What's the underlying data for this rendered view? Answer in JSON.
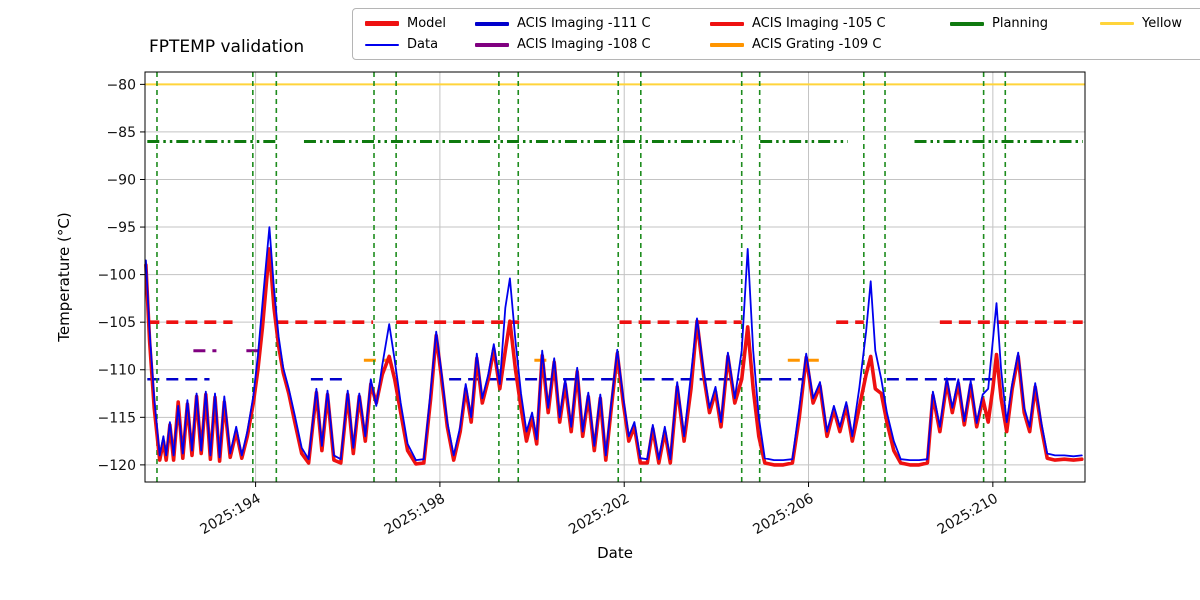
{
  "chart_data": {
    "type": "line",
    "title": "FPTEMP validation",
    "xlabel": "Date",
    "ylabel": "Temperature (°C)",
    "xlim": [
      191.6,
      212.0
    ],
    "ylim": [
      -121.8,
      -78.7
    ],
    "grid": true,
    "xticks": [
      {
        "value": 194,
        "label": "2025:194"
      },
      {
        "value": 198,
        "label": "2025:198"
      },
      {
        "value": 202,
        "label": "2025:202"
      },
      {
        "value": 206,
        "label": "2025:206"
      },
      {
        "value": 210,
        "label": "2025:210"
      }
    ],
    "yticks": [
      {
        "value": -80,
        "label": "−80"
      },
      {
        "value": -85,
        "label": "−85"
      },
      {
        "value": -90,
        "label": "−90"
      },
      {
        "value": -95,
        "label": "−95"
      },
      {
        "value": -100,
        "label": "−100"
      },
      {
        "value": -105,
        "label": "−105"
      },
      {
        "value": -110,
        "label": "−110"
      },
      {
        "value": -115,
        "label": "−115"
      },
      {
        "value": -120,
        "label": "−120"
      }
    ],
    "series": [
      {
        "name": "Model",
        "color": "#ee1111",
        "width": 3.6,
        "x": [
          191.62,
          191.7,
          191.8,
          191.92,
          192.0,
          192.06,
          192.14,
          192.22,
          192.32,
          192.42,
          192.52,
          192.62,
          192.72,
          192.82,
          192.92,
          193.02,
          193.12,
          193.22,
          193.32,
          193.45,
          193.58,
          193.7,
          193.82,
          193.95,
          194.05,
          194.15,
          194.3,
          194.4,
          194.5,
          194.6,
          194.72,
          194.85,
          195.0,
          195.15,
          195.32,
          195.44,
          195.56,
          195.7,
          195.85,
          196.0,
          196.12,
          196.25,
          196.38,
          196.5,
          196.62,
          196.75,
          196.9,
          197.02,
          197.15,
          197.3,
          197.48,
          197.65,
          197.8,
          197.92,
          198.04,
          198.16,
          198.3,
          198.44,
          198.56,
          198.68,
          198.8,
          198.92,
          199.05,
          199.17,
          199.3,
          199.42,
          199.52,
          199.64,
          199.76,
          199.88,
          200.0,
          200.1,
          200.22,
          200.35,
          200.48,
          200.6,
          200.72,
          200.85,
          200.98,
          201.1,
          201.22,
          201.35,
          201.48,
          201.6,
          201.72,
          201.85,
          201.98,
          202.1,
          202.22,
          202.35,
          202.5,
          202.62,
          202.75,
          202.88,
          203.0,
          203.15,
          203.3,
          203.45,
          203.58,
          203.72,
          203.85,
          203.98,
          204.1,
          204.25,
          204.4,
          204.55,
          204.68,
          204.8,
          204.92,
          205.05,
          205.25,
          205.45,
          205.65,
          205.8,
          205.95,
          206.1,
          206.25,
          206.4,
          206.55,
          206.68,
          206.82,
          206.95,
          207.1,
          207.25,
          207.35,
          207.45,
          207.58,
          207.7,
          207.85,
          208.0,
          208.2,
          208.4,
          208.58,
          208.7,
          208.85,
          209.0,
          209.12,
          209.25,
          209.38,
          209.52,
          209.65,
          209.78,
          209.9,
          210.0,
          210.08,
          210.18,
          210.3,
          210.42,
          210.55,
          210.68,
          210.8,
          210.92,
          211.05,
          211.18,
          211.35,
          211.55,
          211.75,
          211.93
        ],
        "y": [
          -99.0,
          -107.0,
          -114.0,
          -119.5,
          -117.5,
          -119.5,
          -115.8,
          -119.5,
          -113.4,
          -119.3,
          -113.6,
          -119.0,
          -112.8,
          -118.8,
          -112.6,
          -119.4,
          -112.9,
          -119.6,
          -113.4,
          -119.2,
          -116.5,
          -119.3,
          -117.0,
          -113.5,
          -110.0,
          -105.5,
          -97.3,
          -103.5,
          -107.5,
          -110.3,
          -112.5,
          -115.5,
          -118.8,
          -119.8,
          -112.4,
          -118.5,
          -112.6,
          -119.5,
          -119.8,
          -112.6,
          -118.8,
          -112.8,
          -117.5,
          -111.5,
          -113.5,
          -110.5,
          -108.6,
          -111.0,
          -114.5,
          -118.5,
          -119.9,
          -119.8,
          -113.0,
          -106.4,
          -111.0,
          -116.0,
          -119.5,
          -116.5,
          -112.0,
          -115.5,
          -108.8,
          -113.5,
          -111.0,
          -107.8,
          -112.0,
          -108.0,
          -104.9,
          -110.0,
          -114.0,
          -117.5,
          -115.0,
          -117.8,
          -108.5,
          -114.5,
          -109.2,
          -115.5,
          -111.5,
          -116.5,
          -110.2,
          -117.0,
          -112.8,
          -118.5,
          -113.0,
          -119.5,
          -114.0,
          -108.3,
          -113.5,
          -117.5,
          -116.0,
          -119.8,
          -119.8,
          -116.2,
          -119.8,
          -116.5,
          -119.8,
          -111.8,
          -117.5,
          -112.0,
          -104.9,
          -110.5,
          -114.5,
          -112.3,
          -116.0,
          -108.6,
          -113.5,
          -111.0,
          -105.5,
          -112.0,
          -117.0,
          -119.8,
          -120.0,
          -120.0,
          -119.8,
          -115.0,
          -108.7,
          -113.5,
          -111.7,
          -117.0,
          -114.2,
          -116.5,
          -113.8,
          -117.5,
          -114.0,
          -110.5,
          -108.6,
          -112.0,
          -112.5,
          -115.5,
          -118.5,
          -119.8,
          -120.0,
          -120.0,
          -119.8,
          -112.7,
          -116.5,
          -111.3,
          -114.5,
          -111.4,
          -115.8,
          -111.6,
          -116.0,
          -113.0,
          -115.5,
          -112.0,
          -108.4,
          -113.0,
          -116.5,
          -112.0,
          -108.6,
          -114.5,
          -116.5,
          -111.8,
          -116.0,
          -119.3,
          -119.5,
          -119.4,
          -119.5,
          -119.4
        ]
      },
      {
        "name": "Data",
        "color": "#0000ee",
        "width": 1.8,
        "x": [
          191.62,
          191.7,
          191.8,
          191.92,
          192.0,
          192.06,
          192.14,
          192.22,
          192.32,
          192.42,
          192.52,
          192.62,
          192.72,
          192.82,
          192.92,
          193.02,
          193.12,
          193.22,
          193.32,
          193.45,
          193.58,
          193.7,
          193.82,
          193.95,
          194.05,
          194.15,
          194.3,
          194.4,
          194.5,
          194.6,
          194.72,
          194.85,
          195.0,
          195.15,
          195.32,
          195.44,
          195.56,
          195.7,
          195.85,
          196.0,
          196.12,
          196.25,
          196.38,
          196.5,
          196.62,
          196.75,
          196.9,
          197.02,
          197.15,
          197.3,
          197.48,
          197.65,
          197.8,
          197.92,
          198.04,
          198.16,
          198.3,
          198.44,
          198.56,
          198.68,
          198.8,
          198.92,
          199.05,
          199.17,
          199.3,
          199.42,
          199.52,
          199.64,
          199.76,
          199.88,
          200.0,
          200.1,
          200.22,
          200.35,
          200.48,
          200.6,
          200.72,
          200.85,
          200.98,
          201.1,
          201.22,
          201.35,
          201.48,
          201.6,
          201.72,
          201.85,
          201.98,
          202.1,
          202.22,
          202.35,
          202.5,
          202.62,
          202.75,
          202.88,
          203.0,
          203.15,
          203.3,
          203.45,
          203.58,
          203.72,
          203.85,
          203.98,
          204.1,
          204.25,
          204.4,
          204.55,
          204.68,
          204.8,
          204.92,
          205.05,
          205.25,
          205.45,
          205.65,
          205.8,
          205.95,
          206.1,
          206.25,
          206.4,
          206.55,
          206.68,
          206.82,
          206.95,
          207.1,
          207.25,
          207.35,
          207.45,
          207.58,
          207.7,
          207.85,
          208.0,
          208.2,
          208.4,
          208.58,
          208.7,
          208.85,
          209.0,
          209.12,
          209.25,
          209.38,
          209.52,
          209.65,
          209.78,
          209.9,
          210.0,
          210.08,
          210.18,
          210.3,
          210.42,
          210.55,
          210.68,
          210.8,
          210.92,
          211.05,
          211.18,
          211.35,
          211.55,
          211.75,
          211.93
        ],
        "y": [
          -98.5,
          -106.0,
          -113.0,
          -119.0,
          -117.0,
          -119.0,
          -115.5,
          -119.0,
          -113.8,
          -118.8,
          -113.2,
          -118.5,
          -112.5,
          -118.5,
          -112.3,
          -119.0,
          -112.5,
          -119.2,
          -112.8,
          -118.8,
          -116.0,
          -119.0,
          -116.5,
          -112.8,
          -108.5,
          -103.0,
          -95.0,
          -101.5,
          -106.5,
          -109.8,
          -112.0,
          -114.8,
          -118.2,
          -119.4,
          -112.0,
          -118.0,
          -112.2,
          -119.0,
          -119.4,
          -112.2,
          -118.2,
          -112.5,
          -117.0,
          -111.0,
          -113.8,
          -109.5,
          -105.2,
          -109.0,
          -113.5,
          -117.8,
          -119.5,
          -119.4,
          -112.2,
          -106.0,
          -110.5,
          -115.5,
          -119.0,
          -116.0,
          -111.5,
          -115.0,
          -108.3,
          -113.0,
          -110.5,
          -107.3,
          -111.5,
          -103.5,
          -100.4,
          -107.0,
          -112.5,
          -116.5,
          -114.5,
          -117.3,
          -108.0,
          -114.0,
          -108.8,
          -115.0,
          -111.0,
          -116.0,
          -109.8,
          -116.5,
          -112.4,
          -118.0,
          -112.6,
          -119.0,
          -113.5,
          -107.9,
          -113.0,
          -117.0,
          -115.5,
          -119.3,
          -119.4,
          -115.8,
          -119.4,
          -116.0,
          -119.4,
          -111.3,
          -117.0,
          -110.5,
          -104.6,
          -110.0,
          -114.0,
          -111.8,
          -115.5,
          -108.2,
          -113.0,
          -108.0,
          -97.3,
          -108.0,
          -115.0,
          -119.3,
          -119.5,
          -119.5,
          -119.4,
          -114.0,
          -108.3,
          -113.0,
          -111.3,
          -116.5,
          -113.8,
          -116.0,
          -113.4,
          -117.0,
          -112.0,
          -106.0,
          -100.7,
          -108.0,
          -111.0,
          -114.5,
          -117.5,
          -119.4,
          -119.5,
          -119.5,
          -119.4,
          -112.3,
          -116.0,
          -110.9,
          -114.0,
          -111.0,
          -115.4,
          -111.2,
          -115.6,
          -112.6,
          -112.0,
          -107.0,
          -103.0,
          -110.0,
          -115.5,
          -111.5,
          -108.2,
          -114.0,
          -116.0,
          -111.4,
          -115.5,
          -118.8,
          -119.0,
          -119.0,
          -119.1,
          -119.0
        ]
      }
    ],
    "limit_lines": [
      {
        "name": "Yellow",
        "color": "#ffd43b",
        "y": -80,
        "style": "solid",
        "width": 2,
        "spans": [
          [
            191.6,
            212.0
          ]
        ]
      },
      {
        "name": "Planning",
        "color": "#0f7a0f",
        "y": -86,
        "style": "dashdotdot",
        "width": 3,
        "spans": [
          [
            191.65,
            194.45
          ],
          [
            195.05,
            204.5
          ],
          [
            204.95,
            206.85
          ],
          [
            208.3,
            211.95
          ]
        ]
      },
      {
        "name": "ACIS Imaging -105 C",
        "color": "#ee1111",
        "y": -105,
        "style": "dashed",
        "width": 3.6,
        "spans": [
          [
            191.65,
            193.5
          ],
          [
            194.45,
            196.55
          ],
          [
            197.05,
            199.72
          ],
          [
            201.9,
            204.55
          ],
          [
            206.6,
            207.2
          ],
          [
            208.85,
            211.95
          ]
        ]
      },
      {
        "name": "ACIS Imaging -111 C",
        "color": "#0000cc",
        "y": -111,
        "style": "dashed",
        "width": 2.6,
        "spans": [
          [
            191.65,
            193.0
          ],
          [
            195.2,
            196.0
          ],
          [
            198.2,
            201.85
          ],
          [
            202.4,
            204.5
          ],
          [
            204.95,
            205.9
          ],
          [
            207.7,
            210.0
          ]
        ]
      },
      {
        "name": "ACIS Grating -109 C",
        "color": "#ff9500",
        "y": -109,
        "style": "dashed",
        "width": 3,
        "spans": [
          [
            196.35,
            196.95
          ],
          [
            200.05,
            200.5
          ],
          [
            205.55,
            206.25
          ]
        ]
      },
      {
        "name": "ACIS Imaging -108 C",
        "color": "#800080",
        "y": -108,
        "style": "dashed",
        "width": 3,
        "spans": [
          [
            192.65,
            193.15
          ],
          [
            193.8,
            194.05
          ]
        ]
      }
    ],
    "vlines": {
      "color": "#1e8c1e",
      "style": "dashed",
      "width": 1.6,
      "x": [
        191.86,
        193.94,
        194.45,
        196.57,
        197.05,
        199.28,
        199.7,
        201.87,
        202.36,
        204.55,
        204.94,
        207.2,
        207.66,
        209.8,
        210.27
      ]
    },
    "legend": {
      "position": "top",
      "entries": [
        {
          "label": "Model",
          "color": "#ee1111",
          "lw": 5,
          "row": 0,
          "col": 0
        },
        {
          "label": "Data",
          "color": "#0000ee",
          "lw": 2,
          "row": 1,
          "col": 0
        },
        {
          "label": "ACIS Imaging -111 C",
          "color": "#0000cc",
          "lw": 4,
          "row": 0,
          "col": 1
        },
        {
          "label": "ACIS Imaging -108 C",
          "color": "#800080",
          "lw": 4,
          "row": 1,
          "col": 1
        },
        {
          "label": "ACIS Imaging -105 C",
          "color": "#ee1111",
          "lw": 4,
          "row": 0,
          "col": 2
        },
        {
          "label": "ACIS Grating -109 C",
          "color": "#ff9500",
          "lw": 4,
          "row": 1,
          "col": 2
        },
        {
          "label": "Planning",
          "color": "#0f7a0f",
          "lw": 4,
          "row": 0,
          "col": 3
        },
        {
          "label": "Yellow",
          "color": "#ffd43b",
          "lw": 3,
          "row": 0,
          "col": 4
        }
      ]
    },
    "colors": {
      "grid": "#c3c3c3",
      "spine": "#000000",
      "background": "#ffffff"
    }
  }
}
